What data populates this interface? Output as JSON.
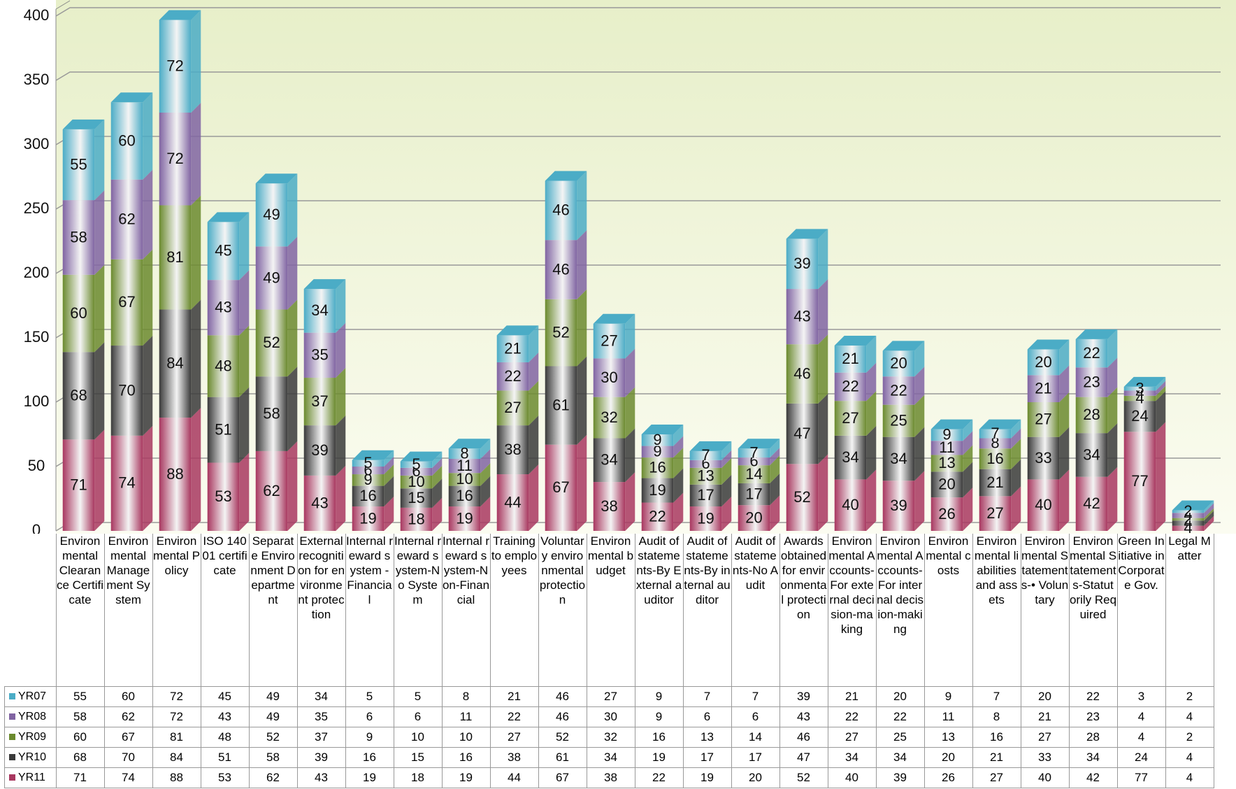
{
  "chart_data": {
    "type": "stacked_bar_3d",
    "categories": [
      "Environmental Clearance Certificate",
      "Environmental Management System",
      "Environmental Policy",
      "ISO 14001 certificate",
      "Separate Environment Department",
      "External recognition for environment protection",
      "Internal reward system - Financial",
      "Internal reward system-No System",
      "Internal reward system-Non-Financial",
      "Training to employees",
      "Voluntary environmental protection",
      "Environmental budget",
      "Audit of statements-By External auditor",
      "Audit of statements-By internal auditor",
      "Audit of statements-No Audit",
      "Awards obtained for environmental protection",
      "Environmental Accounts-For external decision-making",
      "Environmental Accounts-For internal decision-making",
      "Environmental costs",
      "Environmental liabilities and assets",
      "Environmental Statements-• Voluntary",
      "Environmental Statements-Statutorily Required",
      "Green Initiative in Corporate Gov.",
      "Legal Matter"
    ],
    "series": [
      {
        "name": "YR07",
        "color": "#4bacc6",
        "values": [
          55,
          60,
          72,
          45,
          49,
          34,
          5,
          5,
          8,
          21,
          46,
          27,
          9,
          7,
          7,
          39,
          21,
          20,
          9,
          7,
          20,
          22,
          3,
          2
        ]
      },
      {
        "name": "YR08",
        "color": "#8064a2",
        "values": [
          58,
          62,
          72,
          43,
          49,
          35,
          6,
          6,
          11,
          22,
          46,
          30,
          9,
          6,
          6,
          43,
          22,
          22,
          11,
          8,
          21,
          23,
          4,
          4
        ]
      },
      {
        "name": "YR09",
        "color": "#6b8a2e",
        "values": [
          60,
          67,
          81,
          48,
          52,
          37,
          9,
          10,
          10,
          27,
          52,
          32,
          16,
          13,
          14,
          46,
          27,
          25,
          13,
          16,
          27,
          28,
          4,
          2
        ]
      },
      {
        "name": "YR10",
        "color": "#3a3a3a",
        "values": [
          68,
          70,
          84,
          51,
          58,
          39,
          16,
          15,
          16,
          38,
          61,
          34,
          19,
          17,
          17,
          47,
          34,
          34,
          20,
          21,
          33,
          34,
          24,
          4
        ]
      },
      {
        "name": "YR11",
        "color": "#a8375f",
        "values": [
          71,
          74,
          88,
          53,
          62,
          43,
          19,
          18,
          19,
          44,
          67,
          38,
          22,
          19,
          20,
          52,
          40,
          39,
          26,
          27,
          40,
          42,
          77,
          4
        ]
      }
    ],
    "ylim": [
      0,
      400
    ],
    "yticks": [
      0,
      50,
      100,
      150,
      200,
      250,
      300,
      350,
      400
    ],
    "grid": true
  }
}
